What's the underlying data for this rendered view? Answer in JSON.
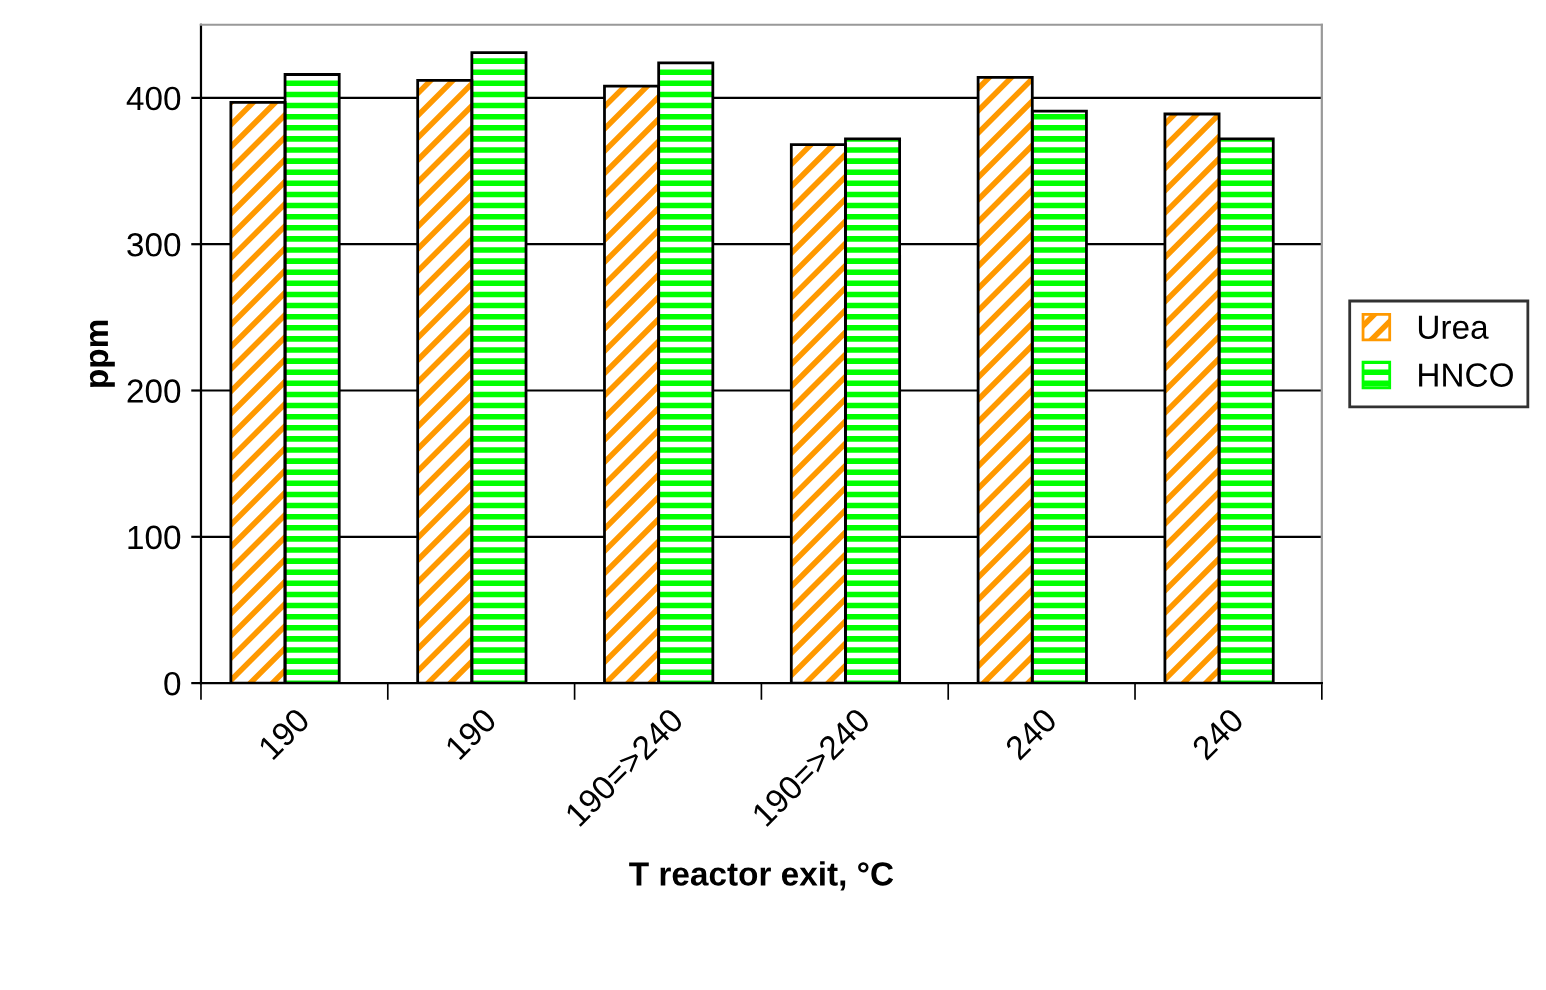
{
  "chart_data": {
    "type": "bar",
    "xlabel": "T reactor exit, °C",
    "ylabel": "ppm",
    "categories": [
      "190",
      "190",
      "190=>240",
      "190=>240",
      "240",
      "240"
    ],
    "series": [
      {
        "name": "Urea",
        "color": "#ff9900",
        "values": [
          397,
          412,
          408,
          368,
          414,
          389
        ]
      },
      {
        "name": "HNCO",
        "color": "#00ff00",
        "values": [
          416,
          431,
          424,
          372,
          391,
          372
        ]
      }
    ],
    "ylim": [
      0,
      450
    ],
    "yticks": [
      0,
      100,
      200,
      300,
      400
    ],
    "grid": "y",
    "legend": "right"
  }
}
